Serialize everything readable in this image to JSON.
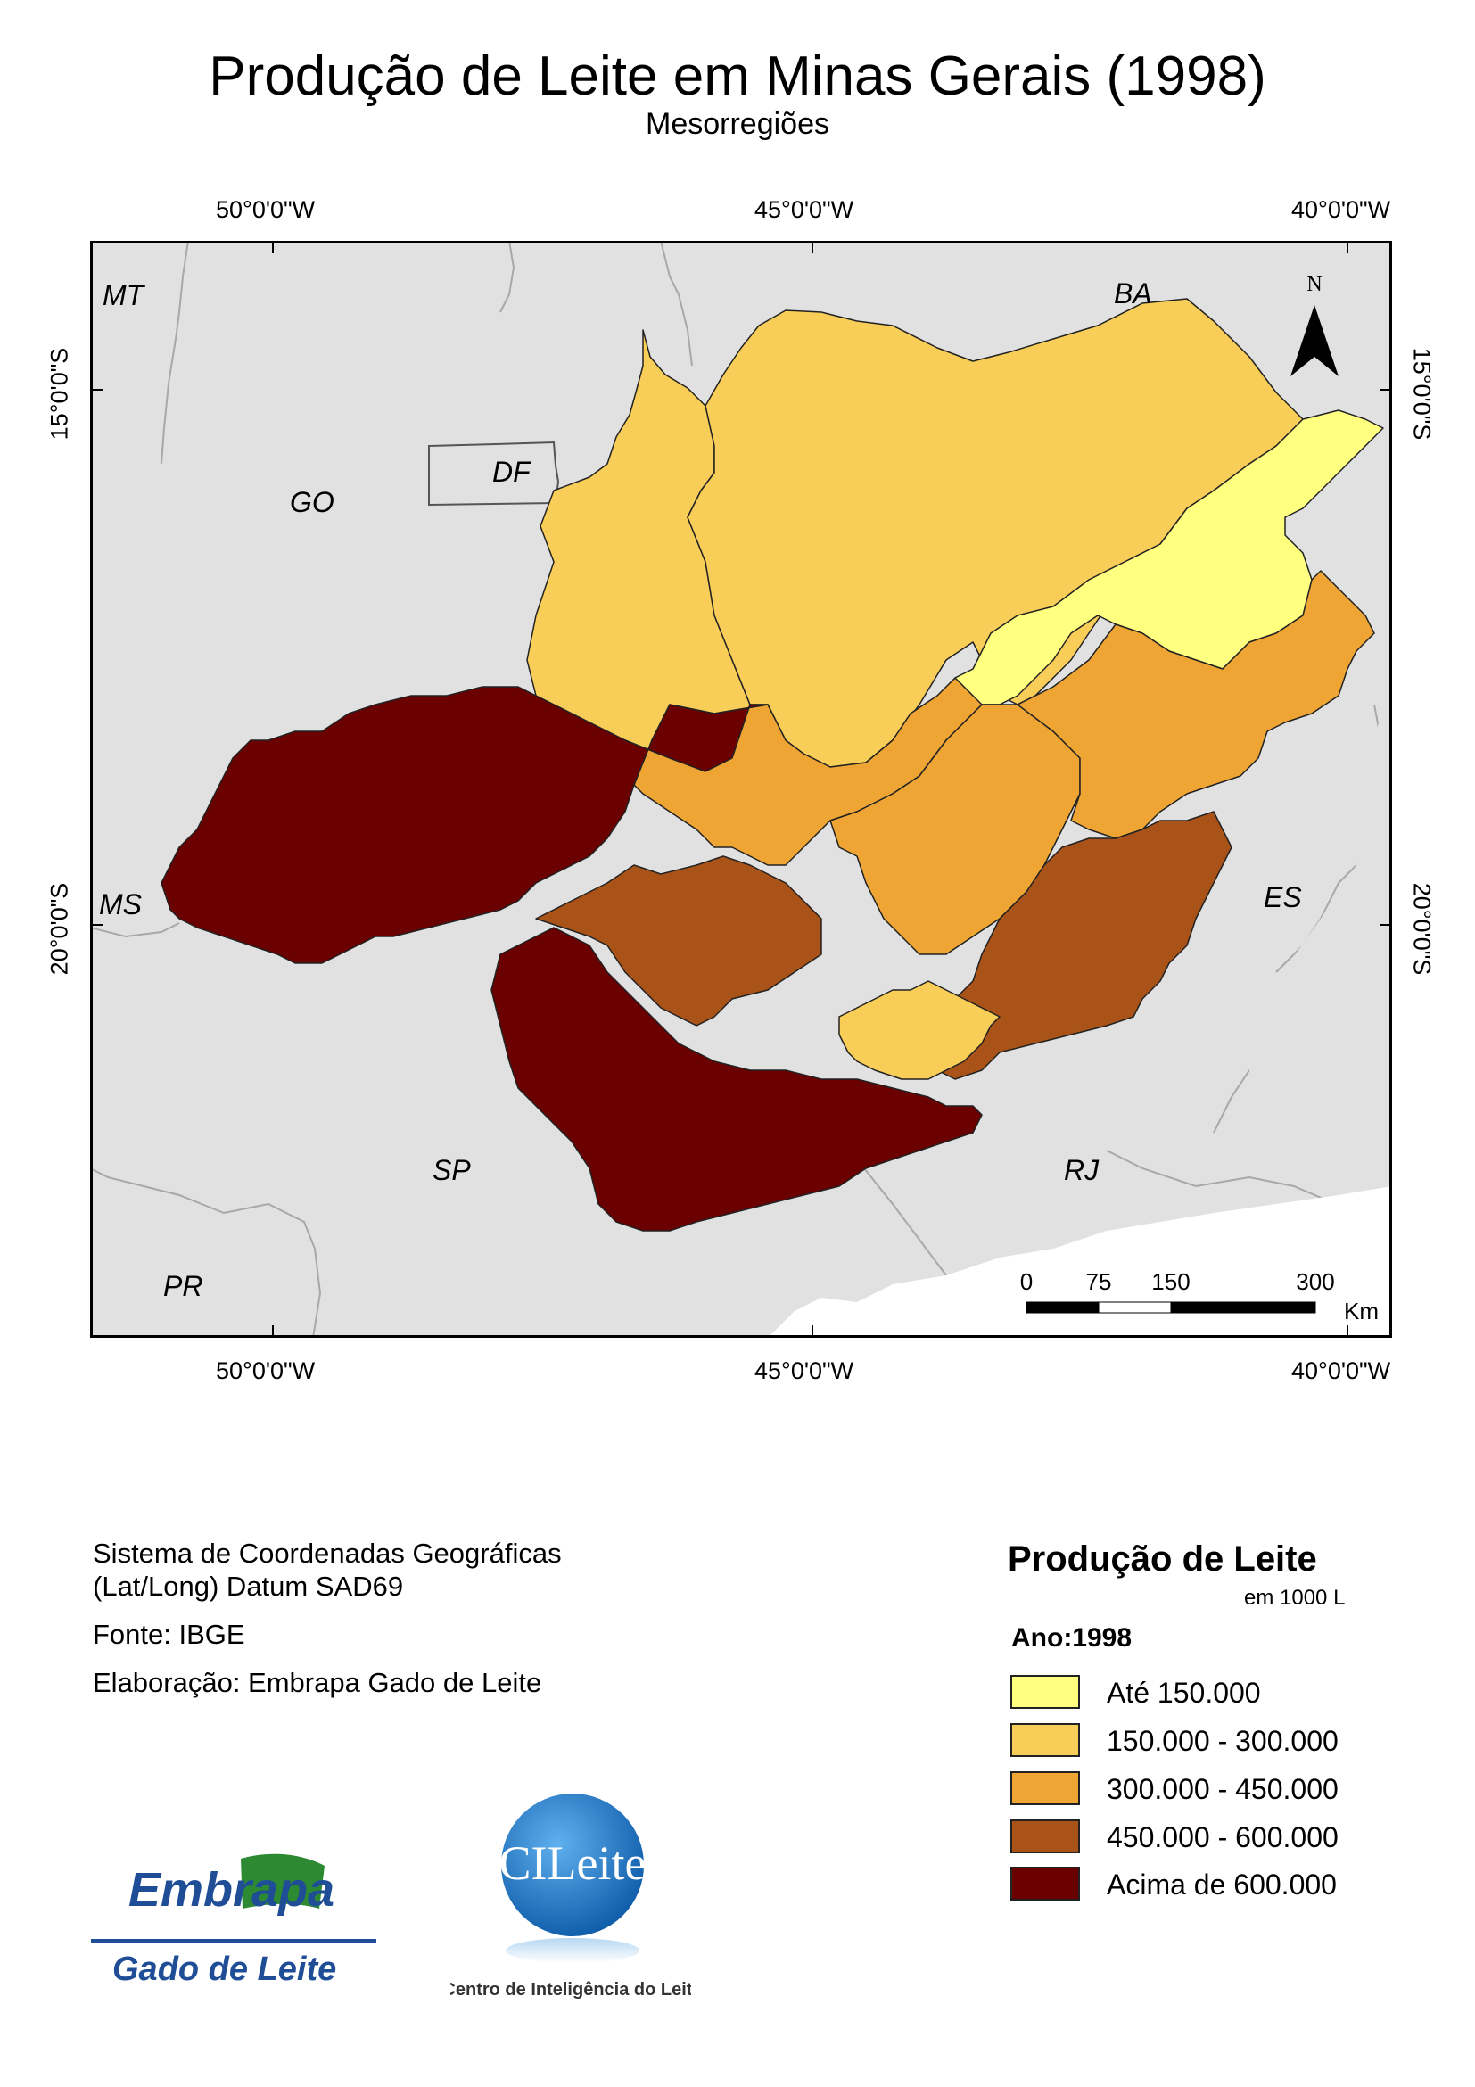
{
  "header": {
    "title": "Produção de Leite em Minas Gerais (1998)",
    "subtitle": "Mesorregiões"
  },
  "graticule": {
    "longitudes": [
      "50°0'0\"W",
      "45°0'0\"W",
      "40°0'0\"W"
    ],
    "latitudes": [
      "15°0'0\"S",
      "20°0'0\"S"
    ]
  },
  "north_arrow": {
    "label": "N",
    "icon": "north-arrow-icon"
  },
  "states": [
    "MT",
    "BA",
    "GO",
    "DF",
    "MS",
    "ES",
    "SP",
    "RJ",
    "PR"
  ],
  "scale_bar": {
    "ticks": [
      "0",
      "75",
      "150",
      "300"
    ],
    "unit": "Km"
  },
  "info": {
    "line1": "Sistema de Coordenadas Geográficas",
    "line2": "(Lat/Long) Datum SAD69",
    "source": "Fonte: IBGE",
    "author": "Elaboração: Embrapa Gado de Leite"
  },
  "legend": {
    "title": "Produção de Leite",
    "unit": "em 1000 L",
    "year": "Ano:1998",
    "classes": [
      {
        "label": "Até 150.000",
        "color": "#ffff80"
      },
      {
        "label": "150.000 - 300.000",
        "color": "#f8cd58"
      },
      {
        "label": "300.000 - 450.000",
        "color": "#efa533"
      },
      {
        "label": "450.000 - 600.000",
        "color": "#aa5318"
      },
      {
        "label": "Acima de 600.000",
        "color": "#6a0000"
      }
    ]
  },
  "logos": {
    "embrapa_top": "Embrapa",
    "embrapa_bottom": "Gado de Leite",
    "cileite_name": "CILeite",
    "cileite_caption": "Centro de Inteligência do Leite"
  },
  "colors": {
    "background_land": "#e1e1e1",
    "border_lines": "#a8a8a8"
  }
}
